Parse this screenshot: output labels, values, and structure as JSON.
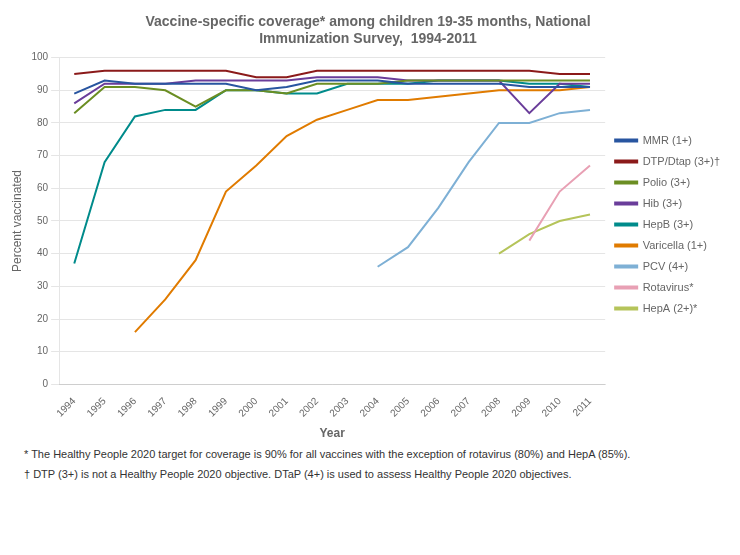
{
  "chart_data": {
    "type": "line",
    "title": "Vaccine-specific coverage* among children 19-35 months, National\nImmunization Survey,  1994-2011",
    "x_label": "Year",
    "y_label": "Percent vaccinated",
    "x": [
      1994,
      1995,
      1996,
      1997,
      1998,
      1999,
      2000,
      2001,
      2002,
      2003,
      2004,
      2005,
      2006,
      2007,
      2008,
      2009,
      2010,
      2011
    ],
    "series": [
      {
        "name": "MMR (1+)",
        "color": "#2855a0",
        "values": [
          89,
          93,
          92,
          92,
          92,
          92,
          90,
          91,
          93,
          93,
          93,
          92,
          92,
          92,
          92,
          91,
          91,
          91
        ]
      },
      {
        "name": "DTP/Dtap (3+)†",
        "color": "#8b1a1a",
        "values": [
          95,
          96,
          96,
          96,
          96,
          96,
          94,
          94,
          96,
          96,
          96,
          96,
          96,
          96,
          96,
          96,
          95,
          95
        ]
      },
      {
        "name": "Polio (3+)",
        "color": "#6b8e23",
        "values": [
          83,
          91,
          91,
          90,
          85,
          90,
          90,
          89,
          92,
          92,
          92,
          93,
          93,
          93,
          93,
          93,
          93,
          93
        ]
      },
      {
        "name": "Hib (3+)",
        "color": "#6a3d9a",
        "values": [
          86,
          92,
          92,
          92,
          93,
          93,
          93,
          93,
          94,
          94,
          94,
          93,
          93,
          93,
          93,
          83,
          92,
          92
        ]
      },
      {
        "name": "HepB (3+)",
        "color": "#008b8b",
        "values": [
          37,
          68,
          82,
          84,
          84,
          90,
          90,
          89,
          89,
          92,
          92,
          92,
          93,
          93,
          93,
          92,
          92,
          91
        ]
      },
      {
        "name": "Varicella (1+)",
        "color": "#e07b00",
        "values": [
          null,
          null,
          16,
          26,
          38,
          59,
          67,
          76,
          81,
          84,
          87,
          87,
          88,
          89,
          90,
          90,
          90,
          91
        ]
      },
      {
        "name": "PCV (4+)",
        "color": "#7eb0d5",
        "values": [
          null,
          null,
          null,
          null,
          null,
          null,
          null,
          null,
          null,
          null,
          36,
          42,
          54,
          68,
          80,
          80,
          83,
          84
        ]
      },
      {
        "name": "Rotavirus*",
        "color": "#e8a0b4",
        "values": [
          null,
          null,
          null,
          null,
          null,
          null,
          null,
          null,
          null,
          null,
          null,
          null,
          null,
          null,
          null,
          44,
          59,
          67
        ]
      },
      {
        "name": "HepA (2+)*",
        "color": "#b5c45a",
        "values": [
          null,
          null,
          null,
          null,
          null,
          null,
          null,
          null,
          null,
          null,
          null,
          null,
          null,
          null,
          40,
          46,
          50,
          52
        ]
      }
    ],
    "xlim": [
      1993.5,
      2011.5
    ],
    "xticks": [
      1994,
      1995,
      1996,
      1997,
      1998,
      1999,
      2000,
      2001,
      2002,
      2003,
      2004,
      2005,
      2006,
      2007,
      2008,
      2009,
      2010,
      2011
    ],
    "ylim": [
      0,
      100
    ],
    "yticks": [
      0,
      10,
      20,
      30,
      40,
      50,
      60,
      70,
      80,
      90,
      100
    ],
    "grid": "y",
    "legend": "right",
    "annotations": [
      "* The Healthy People 2020 target for coverage is 90% for all vaccines with the exception of rotavirus (80%) and HepA (85%).",
      "† DTP (3+) is not a Healthy People 2020 objective.  DTaP (4+) is used to assess Healthy People 2020 objectives."
    ]
  }
}
